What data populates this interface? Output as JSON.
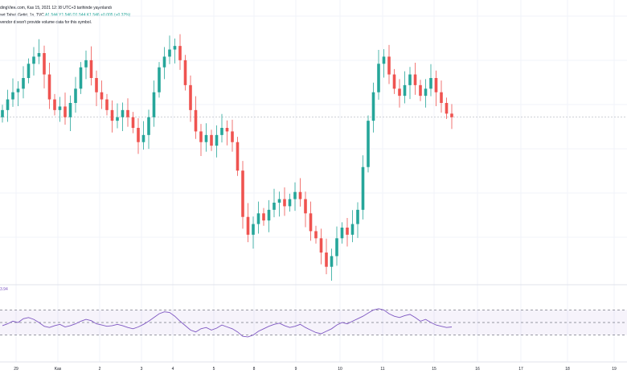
{
  "header": {
    "source_line": "dingView.com, Kas 15, 2021 12:08 UTC+3 tarihinde yayınlandı",
    "symbol_line": "set Tahvil Getiri, 1s, TVC",
    "quote_values": "A1.544  Y1.546  D1.544  K1.546  +0.005 (+0.32%)",
    "notice": "vendor doesn't provide volume data for this symbol."
  },
  "rsi": {
    "value_label": "3.94",
    "line_color": "#7e57c2",
    "band_color": "#7e57c2"
  },
  "colors": {
    "up": "#26a69a",
    "down": "#ef5350",
    "grid": "#f0f3fa"
  },
  "chart_data": {
    "type": "candlestick",
    "x_axis_ticks": [
      "29",
      "Kas",
      "2",
      "3",
      "4",
      "5",
      "8",
      "9",
      "10",
      "11",
      "15",
      "16",
      "17",
      "18",
      "19"
    ],
    "series": [
      {
        "name": "",
        "values": [
          1.562,
          1.565,
          1.567,
          1.568,
          1.571,
          1.575,
          1.577,
          1.578,
          1.572,
          1.565,
          1.562,
          1.563,
          1.56,
          1.564,
          1.568,
          1.574,
          1.576,
          1.571,
          1.567,
          1.565,
          1.562,
          1.559,
          1.56,
          1.562,
          1.56,
          1.557,
          1.553,
          1.555,
          1.56,
          1.567,
          1.574,
          1.577,
          1.579,
          1.58,
          1.576,
          1.569,
          1.562,
          1.556,
          1.553,
          1.555,
          1.552,
          1.555,
          1.557,
          1.556,
          1.553,
          1.545,
          1.532,
          1.527,
          1.53,
          1.533,
          1.531,
          1.534,
          1.536,
          1.537,
          1.535,
          1.537,
          1.539,
          1.537,
          1.533,
          1.528,
          1.526,
          1.522,
          1.518,
          1.521,
          1.526,
          1.529,
          1.527,
          1.53,
          1.534,
          1.546,
          1.559,
          1.567,
          1.575,
          1.577,
          1.572,
          1.568,
          1.566,
          1.569,
          1.572,
          1.569,
          1.566,
          1.568,
          1.571,
          1.567,
          1.564,
          1.561,
          1.56
        ]
      },
      {
        "name": "RSI",
        "values": [
          45,
          48,
          52,
          50,
          56,
          58,
          55,
          50,
          44,
          42,
          45,
          47,
          43,
          45,
          48,
          52,
          55,
          53,
          48,
          46,
          44,
          45,
          47,
          45,
          42,
          40,
          43,
          47,
          52,
          58,
          64,
          67,
          66,
          60,
          52,
          45,
          38,
          35,
          40,
          42,
          38,
          41,
          46,
          43,
          40,
          35,
          28,
          27,
          30,
          36,
          40,
          44,
          47,
          49,
          45,
          42,
          44,
          47,
          42,
          38,
          34,
          32,
          36,
          40,
          46,
          50,
          48,
          52,
          56,
          60,
          65,
          70,
          72,
          70,
          64,
          60,
          58,
          61,
          63,
          58,
          52,
          55,
          50,
          46,
          44,
          42,
          43
        ]
      }
    ],
    "ylim": [
      1.515,
      1.585
    ],
    "rsi_levels": [
      70,
      50,
      30
    ],
    "grid": true
  }
}
